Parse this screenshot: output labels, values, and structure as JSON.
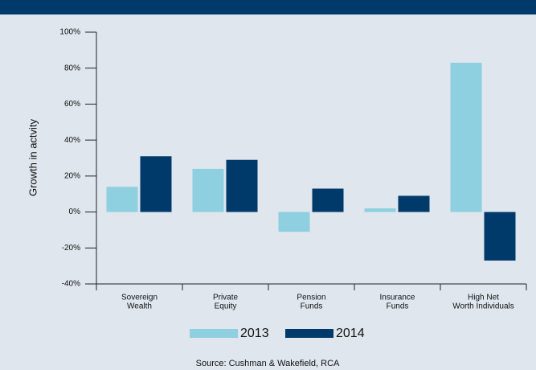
{
  "chart_data": {
    "type": "bar",
    "y_label": "Growth in actvity",
    "source": "Source: Cushman & Wakefield, RCA",
    "categories": [
      [
        "Sovereign",
        "Wealth"
      ],
      [
        "Private",
        "Equity"
      ],
      [
        "Pension",
        "Funds"
      ],
      [
        "Insurance",
        "Funds"
      ],
      [
        "High Net",
        "Worth Individuals"
      ]
    ],
    "series": [
      {
        "name": "2013",
        "color": "#8ecfe0",
        "values": [
          14,
          24,
          -11,
          2,
          83
        ]
      },
      {
        "name": "2014",
        "color": "#003a6b",
        "values": [
          31,
          29,
          13,
          9,
          -27
        ]
      }
    ],
    "ylim": [
      -40,
      100
    ],
    "yticks": [
      {
        "value": -40,
        "label": "-40%"
      },
      {
        "value": -20,
        "label": "-20%"
      },
      {
        "value": 0,
        "label": "0%"
      },
      {
        "value": 20,
        "label": "20%"
      },
      {
        "value": 40,
        "label": "40%"
      },
      {
        "value": 60,
        "label": "60%"
      },
      {
        "value": 80,
        "label": "80%"
      },
      {
        "value": 100,
        "label": "100%"
      }
    ],
    "grid": false
  }
}
